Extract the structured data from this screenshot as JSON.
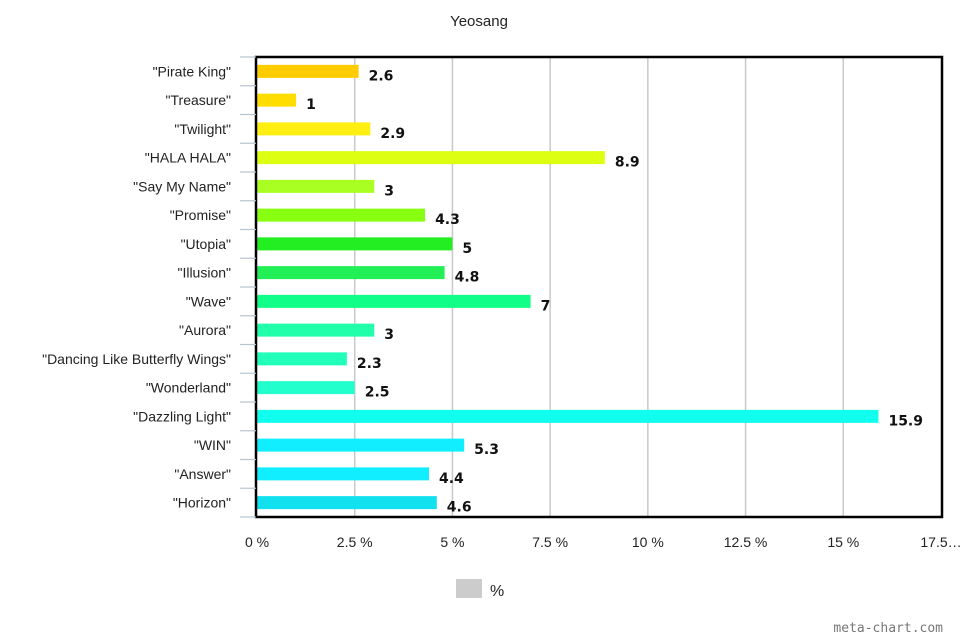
{
  "chart_data": {
    "type": "bar",
    "orientation": "horizontal",
    "title": "Yeosang",
    "categories": [
      "\"Pirate King\"",
      "\"Treasure\"",
      "\"Twilight\"",
      "\"HALA HALA\"",
      "\"Say My Name\"",
      "\"Promise\"",
      "\"Utopia\"",
      "\"Illusion\"",
      "\"Wave\"",
      "\"Aurora\"",
      "\"Dancing Like Butterfly Wings\"",
      "\"Wonderland\"",
      "\"Dazzling Light\"",
      "\"WIN\"",
      "\"Answer\"",
      "\"Horizon\""
    ],
    "values": [
      2.6,
      1,
      2.9,
      8.9,
      3,
      4.3,
      5,
      4.8,
      7,
      3,
      2.3,
      2.5,
      15.9,
      5.3,
      4.4,
      4.6
    ],
    "data_labels": [
      "2.6",
      "1",
      "2.9",
      "8.9",
      "3",
      "4.3",
      "5",
      "4.8",
      "7",
      "3",
      "2.3",
      "2.5",
      "15.9",
      "5.3",
      "4.4",
      "4.6"
    ],
    "colors": [
      "#ffcc00",
      "#ffdd00",
      "#ffee11",
      "#ddff11",
      "#aaff22",
      "#88ff11",
      "#22ee22",
      "#22ee55",
      "#11ff88",
      "#22ffaa",
      "#22ffbb",
      "#22ffcc",
      "#11ffee",
      "#11eeff",
      "#11eeff",
      "#11e0ee"
    ],
    "xlim": [
      0,
      17.5
    ],
    "ticks": [
      0,
      2.5,
      5,
      7.5,
      10,
      12.5,
      15,
      17.5
    ],
    "tick_labels": [
      "0 %",
      "2.5 %",
      "5 %",
      "7.5 %",
      "10 %",
      "12.5 %",
      "15 %",
      "17.5…"
    ],
    "grid": true,
    "legend": {
      "label": "%",
      "color": "#cccccc",
      "position": "bottom"
    },
    "watermark": "meta-chart.com"
  }
}
